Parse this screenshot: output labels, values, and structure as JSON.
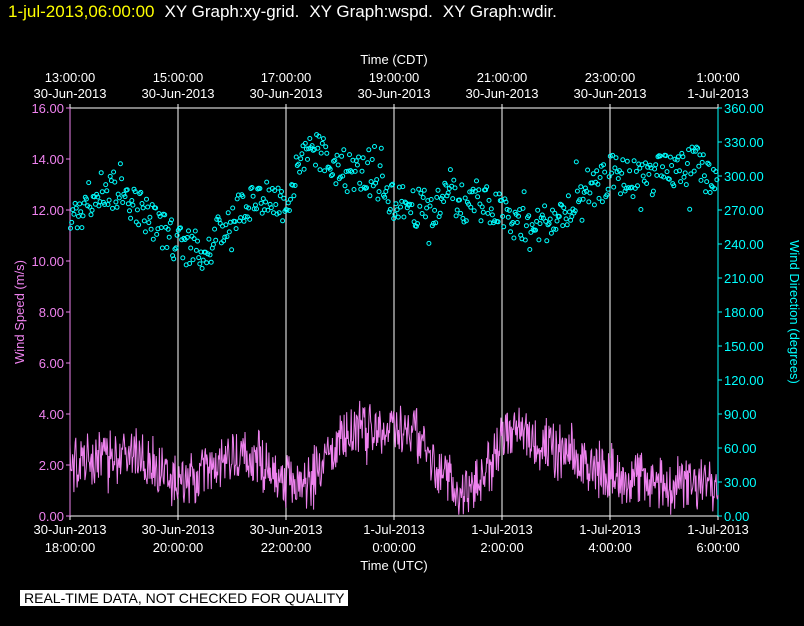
{
  "header": {
    "timestamp": "1-jul-2013,06:00:00",
    "graph_titles": [
      "XY Graph:xy-grid.",
      "XY Graph:wspd.",
      "XY Graph:wdir."
    ]
  },
  "footer_note": "REAL-TIME DATA, NOT CHECKED FOR QUALITY",
  "colors": {
    "background": "#000000",
    "speed": "#ee82ee",
    "direction": "#00ffff",
    "grid": "#ffffff",
    "timestamp": "#ffff00"
  },
  "chart_data": {
    "type": "scatter",
    "top_axis": {
      "label": "Time (CDT)",
      "ticks": [
        {
          "time": "13:00:00",
          "date": "30-Jun-2013"
        },
        {
          "time": "15:00:00",
          "date": "30-Jun-2013"
        },
        {
          "time": "17:00:00",
          "date": "30-Jun-2013"
        },
        {
          "time": "19:00:00",
          "date": "30-Jun-2013"
        },
        {
          "time": "21:00:00",
          "date": "30-Jun-2013"
        },
        {
          "time": "23:00:00",
          "date": "30-Jun-2013"
        },
        {
          "time": "1:00:00",
          "date": "1-Jul-2013"
        }
      ]
    },
    "bottom_axis": {
      "label": "Time (UTC)",
      "ticks": [
        {
          "date": "30-Jun-2013",
          "time": "18:00:00"
        },
        {
          "date": "30-Jun-2013",
          "time": "20:00:00"
        },
        {
          "date": "30-Jun-2013",
          "time": "22:00:00"
        },
        {
          "date": "1-Jul-2013",
          "time": "0:00:00"
        },
        {
          "date": "1-Jul-2013",
          "time": "2:00:00"
        },
        {
          "date": "1-Jul-2013",
          "time": "4:00:00"
        },
        {
          "date": "1-Jul-2013",
          "time": "6:00:00"
        }
      ]
    },
    "xlim_hours_utc": [
      18,
      30
    ],
    "left_axis": {
      "label": "Wind Speed (m/s)",
      "ylim": [
        0,
        16
      ],
      "ticks": [
        "0.00",
        "2.00",
        "4.00",
        "6.00",
        "8.00",
        "10.00",
        "12.00",
        "14.00",
        "16.00"
      ]
    },
    "right_axis": {
      "label": "Wind Direction (degrees)",
      "ylim": [
        0,
        360
      ],
      "ticks": [
        "0.00",
        "30.00",
        "60.00",
        "90.00",
        "120.00",
        "150.00",
        "180.00",
        "210.00",
        "240.00",
        "270.00",
        "300.00",
        "330.00",
        "360.00"
      ]
    },
    "series": [
      {
        "name": "Wind Speed",
        "axis": "left",
        "style": "line",
        "x": [
          18.0,
          18.5,
          19.0,
          19.5,
          20.0,
          20.5,
          21.0,
          21.5,
          22.0,
          22.4,
          22.8,
          23.2,
          23.6,
          24.0,
          24.4,
          24.8,
          25.2,
          25.6,
          26.0,
          26.4,
          26.8,
          27.2,
          27.6,
          28.0,
          28.4,
          28.8,
          29.2,
          29.6,
          30.0
        ],
        "y": [
          2.0,
          2.1,
          2.6,
          2.2,
          1.2,
          1.6,
          2.3,
          2.2,
          1.2,
          1.4,
          2.3,
          3.3,
          3.4,
          3.5,
          3.4,
          1.8,
          0.9,
          1.3,
          3.1,
          3.4,
          2.6,
          2.3,
          1.9,
          1.7,
          1.6,
          1.3,
          1.3,
          1.1,
          1.5
        ]
      },
      {
        "name": "Wind Direction",
        "axis": "right",
        "style": "markers",
        "x": [
          18.0,
          18.5,
          19.0,
          19.5,
          20.0,
          20.5,
          21.0,
          21.5,
          22.0,
          22.4,
          22.8,
          23.2,
          23.6,
          24.0,
          24.4,
          24.8,
          25.0,
          25.2,
          25.5,
          25.8,
          26.2,
          26.6,
          27.0,
          27.4,
          27.8,
          28.0,
          28.4,
          28.8,
          29.2,
          29.6,
          30.0
        ],
        "y": [
          255,
          290,
          285,
          262,
          240,
          232,
          265,
          285,
          275,
          330,
          310,
          305,
          300,
          280,
          272,
          270,
          300,
          265,
          280,
          272,
          262,
          256,
          262,
          272,
          290,
          302,
          298,
          300,
          305,
          310,
          292
        ]
      }
    ]
  }
}
